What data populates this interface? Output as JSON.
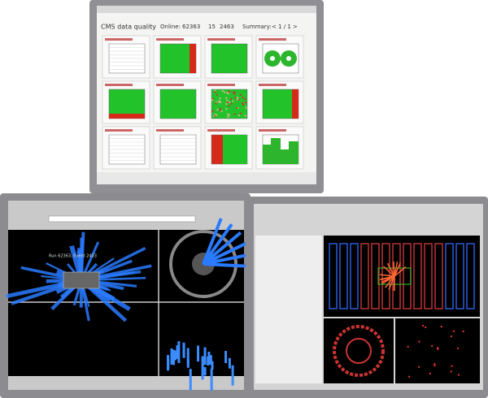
{
  "top_monitor": {
    "title": "CMS data quality",
    "online_label": "Online:",
    "run": "62363",
    "lumi": "15",
    "events": "2463",
    "summary_label": "Summary:",
    "pager": "< 1 / 1 >"
  },
  "bottom_left_monitor": {
    "event_label": "Run 62363, Event 2433"
  }
}
